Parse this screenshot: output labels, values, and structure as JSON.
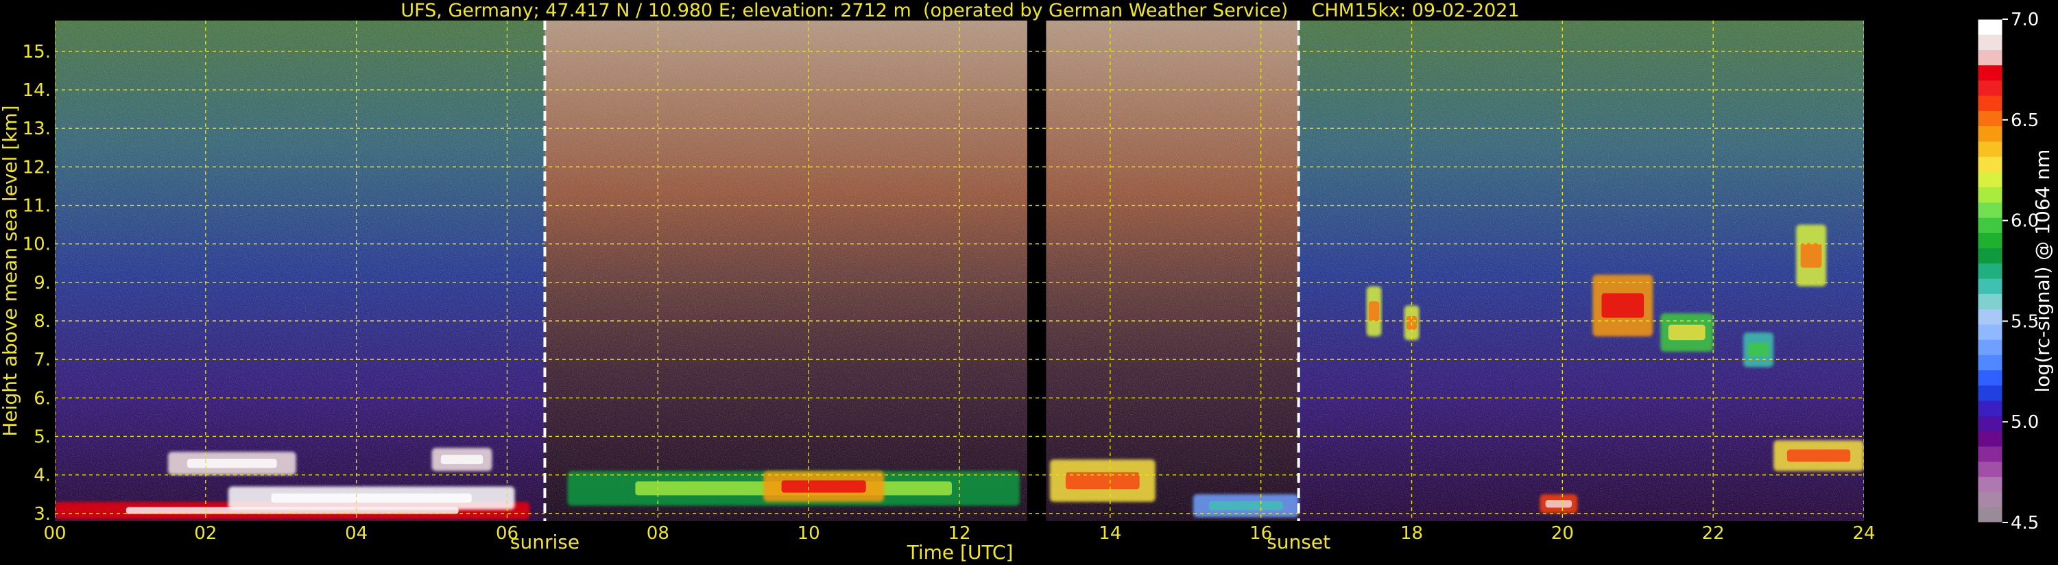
{
  "chart_data": {
    "type": "heatmap",
    "title": "UFS, Germany; 47.417 N / 10.980 E; elevation: 2712 m  (operated by German Weather Service)    CHM15kx: 09-02-2021",
    "xlabel": "Time [UTC]",
    "ylabel": "Height above mean sea level [km]",
    "xlim": [
      0,
      24
    ],
    "ylim": [
      2.8,
      15.8
    ],
    "x_ticks": [
      "00",
      "02",
      "04",
      "06",
      "08",
      "10",
      "12",
      "14",
      "16",
      "18",
      "20",
      "22",
      "24"
    ],
    "y_ticks": [
      "3.",
      "4.",
      "5.",
      "6.",
      "7.",
      "8.",
      "9.",
      "10.",
      "11.",
      "12.",
      "13.",
      "14.",
      "15."
    ],
    "grid": true,
    "annotations": [
      {
        "label": "sunrise",
        "x": 6.5
      },
      {
        "label": "sunset",
        "x": 16.5
      }
    ],
    "data_gap": {
      "x_start": 12.9,
      "x_end": 13.15
    },
    "colorbar": {
      "label": "log(rc-signal) @ 1064 nm",
      "min": 4.5,
      "max": 7.0,
      "ticks": [
        "4.5",
        "5.0",
        "5.5",
        "6.0",
        "6.5",
        "7.0"
      ],
      "colors": [
        "#9a8b98",
        "#a888a6",
        "#b078b0",
        "#a050a6",
        "#8a2a9a",
        "#6a0a8a",
        "#5010a0",
        "#3a20c0",
        "#2040e0",
        "#3060ff",
        "#5088ff",
        "#70a0ff",
        "#90b8ff",
        "#a8c8f8",
        "#80d0d0",
        "#40c0b0",
        "#20b080",
        "#109a40",
        "#20b030",
        "#40c840",
        "#70e050",
        "#a8ec40",
        "#d8f040",
        "#f8e040",
        "#f8c020",
        "#f89a10",
        "#f87010",
        "#f84010",
        "#f02020",
        "#e80010",
        "#f0c0c0",
        "#f0e0e0",
        "#ffffff"
      ]
    },
    "cloud_layers": [
      {
        "x0": 0.0,
        "x1": 6.3,
        "h0": 2.85,
        "h1": 3.3,
        "level": 6.7
      },
      {
        "x0": 2.3,
        "x1": 6.1,
        "h0": 3.1,
        "h1": 3.7,
        "level": 7.0
      },
      {
        "x0": 1.5,
        "x1": 3.2,
        "h0": 4.0,
        "h1": 4.6,
        "level": 6.9
      },
      {
        "x0": 5.0,
        "x1": 5.8,
        "h0": 4.1,
        "h1": 4.7,
        "level": 6.9
      },
      {
        "x0": 6.8,
        "x1": 12.8,
        "h0": 3.2,
        "h1": 4.1,
        "level": 5.8
      },
      {
        "x0": 9.4,
        "x1": 11.0,
        "h0": 3.3,
        "h1": 4.1,
        "level": 6.4
      },
      {
        "x0": 13.2,
        "x1": 14.6,
        "h0": 3.3,
        "h1": 4.4,
        "level": 6.3
      },
      {
        "x0": 15.1,
        "x1": 16.5,
        "h0": 2.9,
        "h1": 3.5,
        "level": 5.4
      },
      {
        "x0": 19.7,
        "x1": 20.2,
        "h0": 3.0,
        "h1": 3.5,
        "level": 6.6
      },
      {
        "x0": 22.8,
        "x1": 24.0,
        "h0": 4.1,
        "h1": 4.9,
        "level": 6.3
      },
      {
        "x0": 17.4,
        "x1": 17.6,
        "h0": 7.6,
        "h1": 8.9,
        "level": 6.2
      },
      {
        "x0": 17.9,
        "x1": 18.1,
        "h0": 7.5,
        "h1": 8.4,
        "level": 6.2
      },
      {
        "x0": 20.4,
        "x1": 21.2,
        "h0": 7.6,
        "h1": 9.2,
        "level": 6.4
      },
      {
        "x0": 21.3,
        "x1": 22.0,
        "h0": 7.2,
        "h1": 8.2,
        "level": 6.0
      },
      {
        "x0": 22.4,
        "x1": 22.8,
        "h0": 6.8,
        "h1": 7.7,
        "level": 5.7
      },
      {
        "x0": 23.1,
        "x1": 23.5,
        "h0": 8.9,
        "h1": 10.5,
        "level": 6.2
      }
    ]
  }
}
